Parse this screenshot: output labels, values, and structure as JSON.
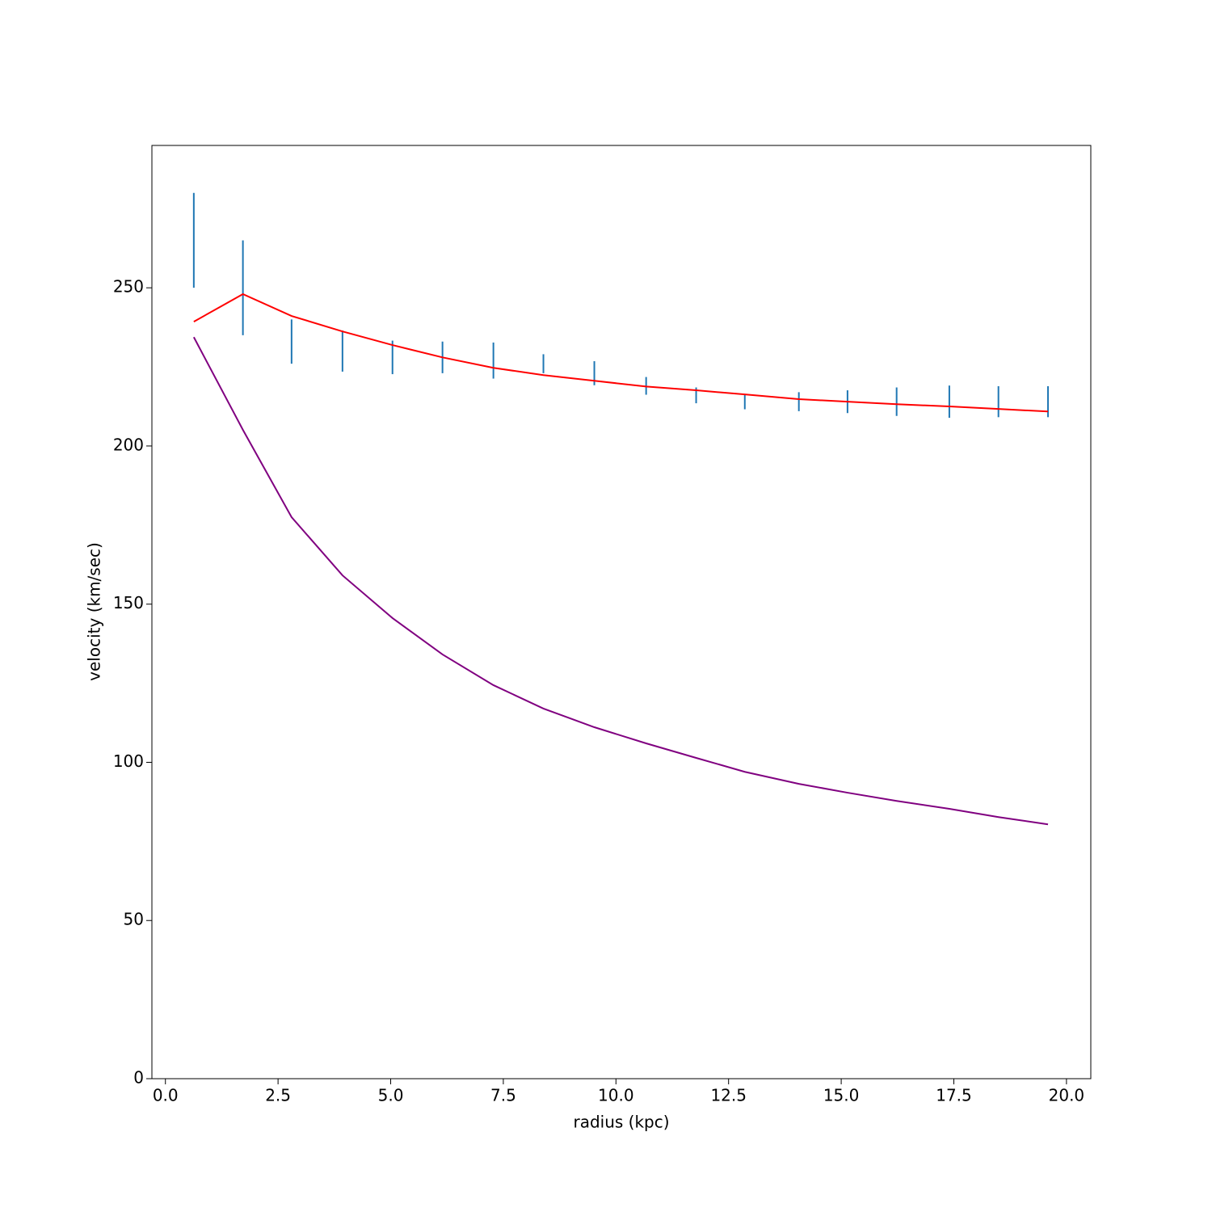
{
  "chart_data": {
    "type": "line",
    "x_label": "radius (kpc)",
    "y_label": "velocity (km/sec)",
    "x": [
      0.63,
      1.72,
      2.8,
      3.93,
      5.04,
      6.15,
      7.28,
      8.39,
      9.52,
      10.67,
      11.78,
      12.86,
      14.06,
      15.14,
      16.23,
      17.4,
      18.49,
      19.59
    ],
    "series": [
      {
        "style": "errorbar",
        "color": "#1f77b4",
        "values": [
          265,
          250,
          233,
          230,
          228,
          228,
          227,
          226,
          223,
          219,
          216,
          214,
          214,
          214,
          214,
          214,
          214,
          214
        ],
        "errors": [
          15,
          15,
          7,
          6.5,
          5.3,
          5,
          5.7,
          3,
          3.8,
          2.8,
          2.5,
          2.4,
          3,
          3.6,
          4.5,
          5.1,
          4.9,
          4.9
        ]
      },
      {
        "style": "line",
        "color": "#ff0000",
        "values": [
          239.3,
          248.0,
          241.1,
          236.2,
          231.9,
          228.0,
          224.7,
          222.4,
          220.6,
          218.8,
          217.6,
          216.3,
          214.8,
          214.0,
          213.2,
          212.5,
          211.7,
          210.9
        ]
      },
      {
        "style": "line",
        "color": "#800080",
        "values": [
          234.4,
          205.1,
          177.5,
          159.1,
          145.6,
          134.1,
          124.4,
          117.0,
          111.1,
          106.0,
          101.4,
          97.0,
          93.2,
          90.4,
          87.8,
          85.3,
          82.7,
          80.4
        ]
      }
    ],
    "xlim": [
      -0.3,
      20.54
    ],
    "ylim": [
      0,
      295
    ],
    "xticks": [
      {
        "value": 0,
        "label": "0.0"
      },
      2.5,
      {
        "value": 5,
        "label": "5.0"
      },
      7.5,
      {
        "value": 10,
        "label": "10.0"
      },
      12.5,
      {
        "value": 15,
        "label": "15.0"
      },
      17.5,
      {
        "value": 20,
        "label": "20.0"
      }
    ],
    "yticks": [
      0,
      50,
      100,
      150,
      200,
      250
    ]
  }
}
